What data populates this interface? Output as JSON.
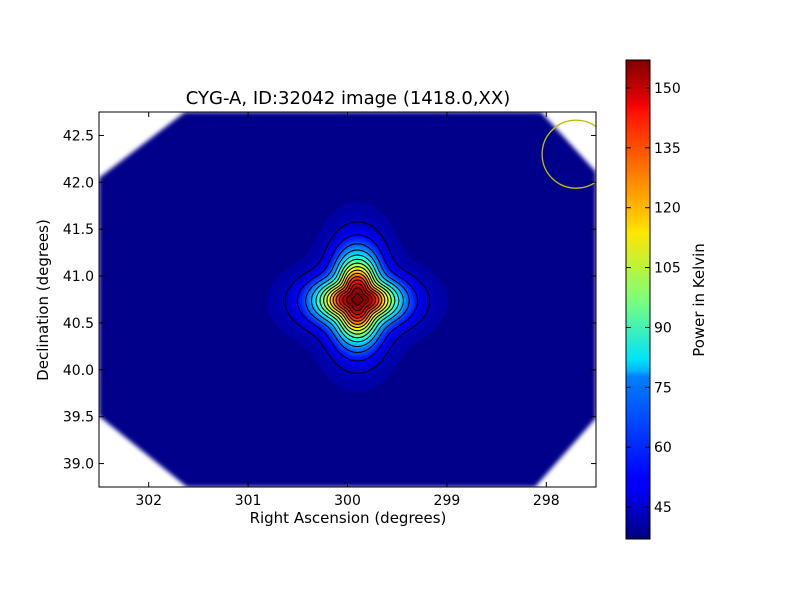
{
  "chart_data": {
    "type": "heatmap",
    "title": "CYG-A, ID:32042 image (1418.0,XX)",
    "xlabel": "Right Ascension (degrees)",
    "ylabel": "Declination (degrees)",
    "xlim": [
      302.5,
      297.5
    ],
    "ylim": [
      38.75,
      42.75
    ],
    "x_inverted": true,
    "xticks": [
      302,
      301,
      300,
      299,
      298
    ],
    "yticks": [
      39.0,
      39.5,
      40.0,
      40.5,
      41.0,
      41.5,
      42.0,
      42.5
    ],
    "source": {
      "ra": 299.9,
      "dec": 40.75,
      "peak_kelvin": 157,
      "background_kelvin": 41
    },
    "contour_levels": [
      44,
      50,
      58,
      66,
      74,
      82,
      90,
      98,
      106,
      114,
      122,
      130,
      138,
      146,
      154
    ],
    "beam_marker": {
      "ra": 297.7,
      "dec": 42.3,
      "color": "#bfbf00"
    },
    "colorbar": {
      "label": "Power in Kelvin",
      "min": 37,
      "max": 157,
      "ticks": [
        45,
        60,
        75,
        90,
        105,
        120,
        135,
        150
      ],
      "colormap": "jet"
    },
    "grid": false
  }
}
